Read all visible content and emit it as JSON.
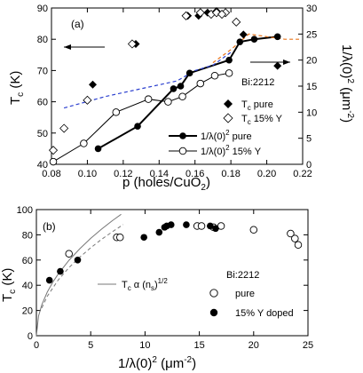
{
  "chart_data": [
    {
      "panel_label": "(a)",
      "type": "scatter",
      "xlabel": "p (holes/CuO",
      "xlabel_sub": "2",
      "xlabel_close": ")",
      "ylabel_left": "T",
      "ylabel_left_sub": "c",
      "ylabel_left_unit": " (K)",
      "ylabel_right": "1/λ(0)",
      "ylabel_right_sup": "2",
      "ylabel_right_unit": " (μm",
      "ylabel_right_unit_sup": "-2",
      "ylabel_right_close": ")",
      "xlim": [
        0.08,
        0.22
      ],
      "ylim_left": [
        40,
        90
      ],
      "ylim_right": [
        0,
        30
      ],
      "x_ticks": [
        "0.08",
        "0.10",
        "0.12",
        "0.14",
        "0.16",
        "0.18",
        "0.20",
        "0.22"
      ],
      "y_left_ticks": [
        "40",
        "50",
        "60",
        "70",
        "80",
        "90"
      ],
      "y_right_ticks": [
        "0",
        "5",
        "10",
        "15",
        "20",
        "25",
        "30"
      ],
      "sample_label": "Bi:2212",
      "legend": [
        {
          "marker": "filled-diamond",
          "text": "T",
          "sub": "c",
          "tail": " pure"
        },
        {
          "marker": "open-diamond",
          "text": "T",
          "sub": "c",
          "tail": " 15% Y"
        },
        {
          "marker": "filled-circle-line",
          "text": "1/λ(0)",
          "sup": "2",
          "tail": " pure"
        },
        {
          "marker": "open-circle-line",
          "text": "1/λ(0)",
          "sup": "2",
          "tail": "  15% Y"
        }
      ],
      "series": [
        {
          "name": "Tc pure",
          "axis": "left",
          "marker": "filled-diamond",
          "x": [
            0.103,
            0.127,
            0.156,
            0.162,
            0.167,
            0.172,
            0.187,
            0.206
          ],
          "y": [
            65.5,
            78.5,
            87.5,
            87.5,
            88.5,
            89.0,
            81.5,
            71.5
          ]
        },
        {
          "name": "Tc 15% Y",
          "axis": "left",
          "marker": "open-diamond",
          "x": [
            0.081,
            0.087,
            0.1,
            0.125,
            0.155,
            0.163,
            0.169,
            0.177,
            0.172,
            0.175,
            0.183
          ],
          "y": [
            44.5,
            51.5,
            60.5,
            78.5,
            87.5,
            88.5,
            88.0,
            88.5,
            88.5,
            88.0,
            85.5
          ]
        },
        {
          "name": "1/λ(0)² pure",
          "axis": "right",
          "marker": "filled-circle",
          "line": "solid-thick",
          "x": [
            0.106,
            0.128,
            0.148,
            0.152,
            0.157,
            0.179,
            0.185,
            0.193,
            0.206
          ],
          "y": [
            3.0,
            7.3,
            14.5,
            15.0,
            17.5,
            20.0,
            23.5,
            24.0,
            24.5
          ]
        },
        {
          "name": "1/λ(0)² 15% Y",
          "axis": "right",
          "marker": "open-circle",
          "line": "solid-thin",
          "x": [
            0.081,
            0.098,
            0.116,
            0.134,
            0.145,
            0.153,
            0.163,
            0.171,
            0.179
          ],
          "y": [
            0.5,
            4.0,
            10.0,
            12.5,
            12.0,
            13.0,
            15.5,
            17.0,
            17.5
          ]
        },
        {
          "name": "dashed-blue",
          "axis": "right",
          "line": "dashed",
          "color": "#2b3fcf",
          "x": [
            0.087,
            0.11,
            0.13,
            0.15,
            0.16,
            0.17,
            0.18
          ],
          "y": [
            10.8,
            13.0,
            14.5,
            16.0,
            18.0,
            19.0,
            21.5
          ]
        },
        {
          "name": "dashed-orange",
          "axis": "right",
          "line": "dashed",
          "color": "#e8741a",
          "x": [
            0.17,
            0.18,
            0.19,
            0.2,
            0.21,
            0.218
          ],
          "y": [
            19.5,
            22.0,
            25.0,
            24.5,
            24.0,
            24.0
          ]
        }
      ]
    },
    {
      "panel_label": "(b)",
      "type": "scatter",
      "xlabel": "1/λ(0)",
      "xlabel_sup": "2",
      "xlabel_unit": " (μm",
      "xlabel_unit_sup": "-2",
      "xlabel_close": ")",
      "ylabel": "T",
      "ylabel_sub": "c",
      "ylabel_unit": " (K)",
      "xlim": [
        0,
        25
      ],
      "ylim": [
        0,
        100
      ],
      "x_ticks": [
        "0",
        "5",
        "10",
        "15",
        "20",
        "25"
      ],
      "y_ticks": [
        "0",
        "20",
        "40",
        "60",
        "80",
        "100"
      ],
      "sample_label": "Bi:2212",
      "legend": [
        {
          "marker": "open-circle",
          "text": "pure"
        },
        {
          "marker": "filled-circle",
          "text": "15% Y doped"
        }
      ],
      "line_label": {
        "text": "T",
        "sub": "c",
        "mid": " α (n",
        "sub2": "s",
        "tail": ")",
        "sup": "1/2"
      },
      "series": [
        {
          "name": "pure",
          "marker": "open-circle",
          "x": [
            3.0,
            7.4,
            7.7,
            14.8,
            15.2,
            16.3,
            17.0,
            20.0,
            23.4,
            23.8,
            24.1
          ],
          "y": [
            65,
            78,
            78,
            87,
            87,
            86,
            87,
            84,
            81,
            77,
            72
          ]
        },
        {
          "name": "15% Y doped",
          "marker": "filled-circle",
          "x": [
            1.2,
            2.2,
            3.8,
            9.9,
            11.3,
            11.8,
            12.0,
            12.4,
            13.8,
            16.0,
            16.5
          ],
          "y": [
            44,
            51,
            60,
            78,
            82,
            86,
            87,
            88,
            88,
            87,
            85
          ]
        },
        {
          "name": "sqrt-fit-solid",
          "line": "solid",
          "color": "#777777",
          "x": [
            0.0,
            0.2,
            0.5,
            1.0,
            1.5,
            2.0,
            3.0,
            4.0,
            5.0,
            6.0,
            7.0,
            7.8
          ],
          "y": [
            0,
            15.5,
            24.5,
            34.5,
            42.3,
            48.8,
            59.8,
            69.0,
            77.2,
            84.5,
            91.3,
            96.3
          ]
        },
        {
          "name": "sqrt-fit-dashed",
          "line": "dashed",
          "color": "#777777",
          "x": [
            0.5,
            1.0,
            2.0,
            3.0,
            4.0,
            5.0,
            6.0,
            7.0,
            8.0
          ],
          "y": [
            22,
            31.2,
            44.1,
            54.0,
            62.4,
            69.7,
            76.4,
            82.5,
            88.2
          ]
        }
      ]
    }
  ]
}
